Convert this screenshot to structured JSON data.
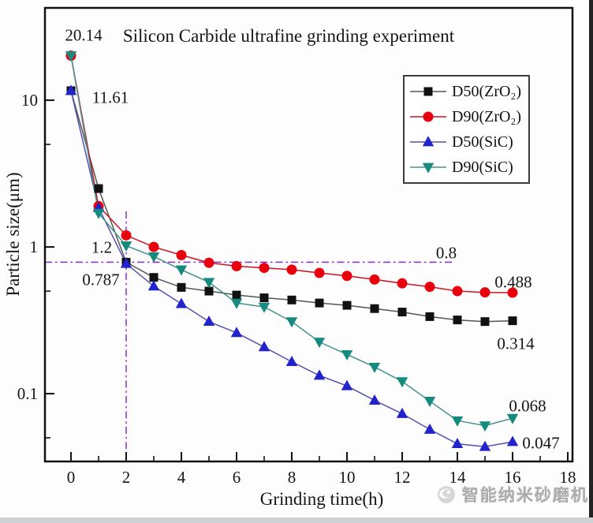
{
  "watermark": {
    "text": "智能纳米砂磨机"
  },
  "chart_data": {
    "type": "line",
    "title": "Silicon Carbide ultrafine grinding experiment",
    "xlabel": "Grinding time(h)",
    "ylabel": "Particle size(μm)",
    "x_axis": {
      "scale": "linear",
      "min": -0.943,
      "max": 18.171,
      "major_ticks": [
        0,
        2,
        4,
        6,
        8,
        10,
        12,
        14,
        16,
        18
      ],
      "minor_ticks": [
        1,
        3,
        5,
        7,
        9,
        11,
        13,
        15,
        17
      ]
    },
    "y_axis": {
      "scale": "log",
      "min": 0.0345,
      "max": 42.6,
      "major_ticks": [
        {
          "value": 10,
          "label": "10"
        },
        {
          "value": 1,
          "label": "1"
        },
        {
          "value": 0.1,
          "label": "0.1"
        }
      ],
      "minor_ticks": [
        5,
        0.5,
        0.05
      ]
    },
    "x": [
      0,
      1,
      2,
      3,
      4,
      5,
      6,
      7,
      8,
      9,
      10,
      11,
      12,
      13,
      14,
      15,
      16
    ],
    "series": [
      {
        "name": "D50(ZrO₂)",
        "marker": "square",
        "color": "#111111",
        "line_color": "#555555",
        "values": [
          11.61,
          2.5,
          0.787,
          0.62,
          0.53,
          0.5,
          0.47,
          0.45,
          0.435,
          0.415,
          0.4,
          0.38,
          0.36,
          0.335,
          0.318,
          0.31,
          0.314
        ]
      },
      {
        "name": "D90(ZrO₂)",
        "marker": "circle",
        "color": "#e8000d",
        "line_color": "#d2101f",
        "values": [
          20.14,
          1.9,
          1.2,
          1.0,
          0.88,
          0.78,
          0.74,
          0.72,
          0.7,
          0.665,
          0.635,
          0.6,
          0.565,
          0.535,
          0.5,
          0.49,
          0.488
        ]
      },
      {
        "name": "D50(SiC)",
        "marker": "triangle-up",
        "color": "#2323cd",
        "line_color": "#5252b0",
        "values": [
          11.61,
          1.85,
          0.77,
          0.54,
          0.41,
          0.31,
          0.26,
          0.208,
          0.165,
          0.133,
          0.113,
          0.09,
          0.073,
          0.057,
          0.0455,
          0.0435,
          0.047
        ]
      },
      {
        "name": "D90(SiC)",
        "marker": "triangle-down",
        "color": "#178a7e",
        "line_color": "#459289",
        "values": [
          20.14,
          1.7,
          1.02,
          0.86,
          0.7,
          0.575,
          0.415,
          0.39,
          0.31,
          0.225,
          0.185,
          0.152,
          0.121,
          0.089,
          0.0655,
          0.0605,
          0.068
        ]
      }
    ],
    "reference_lines": {
      "style": "dash-dot",
      "color": "#8a2be2",
      "vertical_x": 2,
      "vertical_top_y": 1.75,
      "horizontal_y": 0.787,
      "horizontal_end_x": 13.9
    },
    "annotations": [
      {
        "text": "20.14"
      },
      {
        "text": "11.61"
      },
      {
        "text": "1.2"
      },
      {
        "text": "0.787"
      },
      {
        "text": "0.8"
      },
      {
        "text": "0.488"
      },
      {
        "text": "0.314"
      },
      {
        "text": "0.068"
      },
      {
        "text": "0.047"
      }
    ],
    "legend_position": "upper right",
    "grid": false
  }
}
